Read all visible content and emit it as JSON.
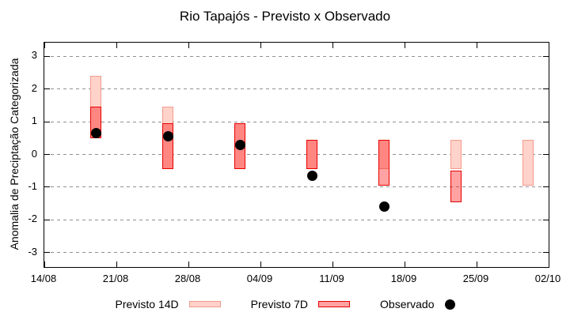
{
  "chart_data": {
    "type": "candlestick",
    "title": "Rio Tapajós - Previsto x Observado",
    "xlabel": "",
    "ylabel": "Anomalia de Preciptação Categorizada",
    "ylim": [
      -3.45,
      3.45
    ],
    "grid": "horizontal-dashed-gray",
    "legend_position": "bottom",
    "y_ticks": [
      3,
      2,
      1,
      0,
      -1,
      -2,
      -3
    ],
    "x_ticks": [
      {
        "label": "14/08",
        "day": 0
      },
      {
        "label": "21/08",
        "day": 7
      },
      {
        "label": "28/08",
        "day": 14
      },
      {
        "label": "04/09",
        "day": 21
      },
      {
        "label": "11/09",
        "day": 28
      },
      {
        "label": "18/09",
        "day": 35
      },
      {
        "label": "25/09",
        "day": 42
      },
      {
        "label": "02/10",
        "day": 49
      }
    ],
    "series": [
      {
        "name": "Previsto 14D",
        "type": "range-bar",
        "fill": "#ffd2ca",
        "border": "#f29b8e"
      },
      {
        "name": "Previsto 7D",
        "type": "range-bar",
        "fill": "rgba(255,10,10,0.38)",
        "border": "#e60000"
      },
      {
        "name": "Observado",
        "type": "point",
        "color": "#000000"
      }
    ],
    "groups": [
      {
        "date": "19/08",
        "day": 5,
        "previsto_14d": [
          0.5,
          2.4
        ],
        "previsto_7d": [
          0.5,
          1.45
        ],
        "observado": 0.65
      },
      {
        "date": "26/08",
        "day": 12,
        "previsto_14d": [
          -0.45,
          1.45
        ],
        "previsto_7d": [
          -0.45,
          0.95
        ],
        "observado": 0.55
      },
      {
        "date": "02/09",
        "day": 19,
        "previsto_14d": [
          -0.45,
          0.95
        ],
        "previsto_7d": [
          -0.45,
          0.95
        ],
        "observado": 0.3
      },
      {
        "date": "09/09",
        "day": 26,
        "previsto_14d": [
          -0.45,
          0.45
        ],
        "previsto_7d": [
          -0.45,
          0.45
        ],
        "observado": -0.65
      },
      {
        "date": "16/09",
        "day": 33,
        "previsto_14d": [
          -0.45,
          0.45
        ],
        "previsto_7d": [
          -0.95,
          0.45
        ],
        "observado": -1.6
      },
      {
        "date": "23/09",
        "day": 40,
        "previsto_14d": [
          -0.45,
          0.45
        ],
        "previsto_7d": [
          -1.45,
          -0.5
        ],
        "observado": null
      },
      {
        "date": "30/09",
        "day": 47,
        "previsto_14d": [
          -0.95,
          0.45
        ],
        "previsto_7d": null,
        "observado": null
      }
    ]
  }
}
